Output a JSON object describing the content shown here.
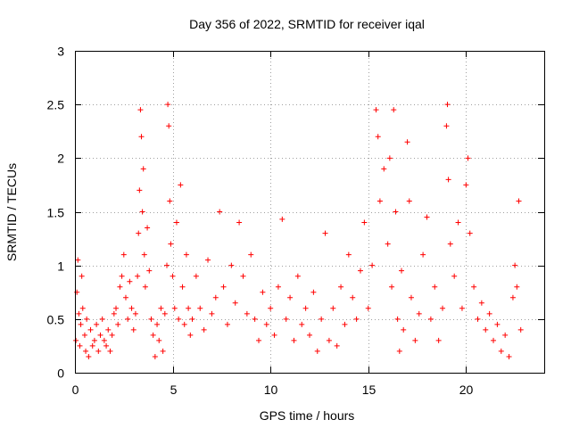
{
  "chart_data": {
    "type": "scatter",
    "title": "Day 356 of 2022, SRMTID for receiver iqal",
    "xlabel": "GPS time / hours",
    "ylabel": "SRMTID / TECUs",
    "xlim": [
      0,
      24
    ],
    "ylim": [
      0,
      3
    ],
    "xticks": [
      0,
      5,
      10,
      15,
      20
    ],
    "yticks": [
      0,
      0.5,
      1,
      1.5,
      2,
      2.5,
      3
    ],
    "xtick_labels": [
      "0",
      "5",
      "10",
      "15",
      "20"
    ],
    "ytick_labels": [
      "0",
      "0.5",
      "1",
      "1.5",
      "2",
      "2.5",
      "3"
    ],
    "grid": true,
    "marker": "+",
    "color": "#ff0000",
    "series": [
      {
        "name": "SRMTID",
        "points": [
          [
            0.05,
            0.3
          ],
          [
            0.1,
            0.75
          ],
          [
            0.15,
            1.05
          ],
          [
            0.2,
            0.55
          ],
          [
            0.25,
            0.25
          ],
          [
            0.3,
            0.45
          ],
          [
            0.35,
            0.9
          ],
          [
            0.4,
            0.6
          ],
          [
            0.5,
            0.35
          ],
          [
            0.55,
            0.2
          ],
          [
            0.6,
            0.5
          ],
          [
            0.7,
            0.15
          ],
          [
            0.8,
            0.4
          ],
          [
            0.9,
            0.25
          ],
          [
            1.0,
            0.3
          ],
          [
            1.1,
            0.45
          ],
          [
            1.2,
            0.2
          ],
          [
            1.3,
            0.35
          ],
          [
            1.4,
            0.5
          ],
          [
            1.5,
            0.3
          ],
          [
            1.6,
            0.25
          ],
          [
            1.7,
            0.4
          ],
          [
            1.8,
            0.2
          ],
          [
            1.9,
            0.35
          ],
          [
            2.0,
            0.55
          ],
          [
            2.1,
            0.6
          ],
          [
            2.2,
            0.45
          ],
          [
            2.3,
            0.8
          ],
          [
            2.4,
            0.9
          ],
          [
            2.5,
            1.1
          ],
          [
            2.6,
            0.7
          ],
          [
            2.7,
            0.5
          ],
          [
            2.8,
            0.85
          ],
          [
            2.9,
            0.6
          ],
          [
            3.0,
            0.4
          ],
          [
            3.1,
            0.55
          ],
          [
            3.2,
            0.9
          ],
          [
            3.25,
            1.3
          ],
          [
            3.3,
            1.7
          ],
          [
            3.35,
            2.45
          ],
          [
            3.4,
            2.2
          ],
          [
            3.45,
            1.5
          ],
          [
            3.5,
            1.9
          ],
          [
            3.55,
            1.1
          ],
          [
            3.6,
            0.8
          ],
          [
            3.7,
            1.35
          ],
          [
            3.8,
            0.95
          ],
          [
            3.9,
            0.5
          ],
          [
            4.0,
            0.35
          ],
          [
            4.1,
            0.15
          ],
          [
            4.2,
            0.45
          ],
          [
            4.3,
            0.3
          ],
          [
            4.4,
            0.6
          ],
          [
            4.5,
            0.2
          ],
          [
            4.6,
            0.55
          ],
          [
            4.7,
            1.0
          ],
          [
            4.75,
            2.5
          ],
          [
            4.8,
            2.3
          ],
          [
            4.85,
            1.6
          ],
          [
            4.9,
            1.2
          ],
          [
            5.0,
            0.9
          ],
          [
            5.1,
            0.6
          ],
          [
            5.2,
            1.4
          ],
          [
            5.3,
            0.5
          ],
          [
            5.4,
            1.75
          ],
          [
            5.5,
            0.8
          ],
          [
            5.6,
            0.45
          ],
          [
            5.7,
            1.1
          ],
          [
            5.8,
            0.6
          ],
          [
            5.9,
            0.35
          ],
          [
            6.0,
            0.5
          ],
          [
            6.2,
            0.9
          ],
          [
            6.4,
            0.6
          ],
          [
            6.6,
            0.4
          ],
          [
            6.8,
            1.05
          ],
          [
            7.0,
            0.55
          ],
          [
            7.2,
            0.7
          ],
          [
            7.4,
            1.5
          ],
          [
            7.6,
            0.8
          ],
          [
            7.8,
            0.45
          ],
          [
            8.0,
            1.0
          ],
          [
            8.2,
            0.65
          ],
          [
            8.4,
            1.4
          ],
          [
            8.6,
            0.9
          ],
          [
            8.8,
            0.55
          ],
          [
            9.0,
            1.1
          ],
          [
            9.2,
            0.5
          ],
          [
            9.4,
            0.3
          ],
          [
            9.6,
            0.75
          ],
          [
            9.8,
            0.45
          ],
          [
            10.0,
            0.6
          ],
          [
            10.2,
            0.35
          ],
          [
            10.4,
            0.8
          ],
          [
            10.6,
            1.43
          ],
          [
            10.8,
            0.5
          ],
          [
            11.0,
            0.7
          ],
          [
            11.2,
            0.3
          ],
          [
            11.4,
            0.9
          ],
          [
            11.6,
            0.45
          ],
          [
            11.8,
            0.6
          ],
          [
            12.0,
            0.35
          ],
          [
            12.2,
            0.75
          ],
          [
            12.4,
            0.2
          ],
          [
            12.6,
            0.5
          ],
          [
            12.8,
            1.3
          ],
          [
            13.0,
            0.3
          ],
          [
            13.2,
            0.6
          ],
          [
            13.4,
            0.25
          ],
          [
            13.6,
            0.8
          ],
          [
            13.8,
            0.45
          ],
          [
            14.0,
            1.1
          ],
          [
            14.2,
            0.7
          ],
          [
            14.4,
            0.5
          ],
          [
            14.6,
            0.95
          ],
          [
            14.8,
            1.4
          ],
          [
            15.0,
            0.6
          ],
          [
            15.2,
            1.0
          ],
          [
            15.4,
            2.45
          ],
          [
            15.5,
            2.2
          ],
          [
            15.6,
            1.6
          ],
          [
            15.8,
            1.9
          ],
          [
            16.0,
            1.2
          ],
          [
            16.1,
            2.0
          ],
          [
            16.2,
            0.8
          ],
          [
            16.3,
            2.45
          ],
          [
            16.4,
            1.5
          ],
          [
            16.5,
            0.5
          ],
          [
            16.6,
            0.2
          ],
          [
            16.7,
            0.95
          ],
          [
            16.8,
            0.4
          ],
          [
            17.0,
            2.15
          ],
          [
            17.1,
            1.6
          ],
          [
            17.2,
            0.7
          ],
          [
            17.4,
            0.3
          ],
          [
            17.6,
            0.55
          ],
          [
            17.8,
            1.1
          ],
          [
            18.0,
            1.45
          ],
          [
            18.2,
            0.5
          ],
          [
            18.4,
            0.8
          ],
          [
            18.6,
            0.3
          ],
          [
            18.8,
            0.6
          ],
          [
            19.0,
            2.3
          ],
          [
            19.05,
            2.5
          ],
          [
            19.1,
            1.8
          ],
          [
            19.2,
            1.2
          ],
          [
            19.4,
            0.9
          ],
          [
            19.6,
            1.4
          ],
          [
            19.8,
            0.6
          ],
          [
            20.0,
            1.75
          ],
          [
            20.1,
            2.0
          ],
          [
            20.2,
            1.3
          ],
          [
            20.4,
            0.8
          ],
          [
            20.6,
            0.5
          ],
          [
            20.8,
            0.65
          ],
          [
            21.0,
            0.4
          ],
          [
            21.2,
            0.55
          ],
          [
            21.4,
            0.3
          ],
          [
            21.6,
            0.45
          ],
          [
            21.8,
            0.2
          ],
          [
            22.0,
            0.35
          ],
          [
            22.2,
            0.15
          ],
          [
            22.4,
            0.7
          ],
          [
            22.5,
            1.0
          ],
          [
            22.6,
            0.8
          ],
          [
            22.7,
            1.6
          ],
          [
            22.8,
            0.4
          ]
        ]
      }
    ]
  }
}
